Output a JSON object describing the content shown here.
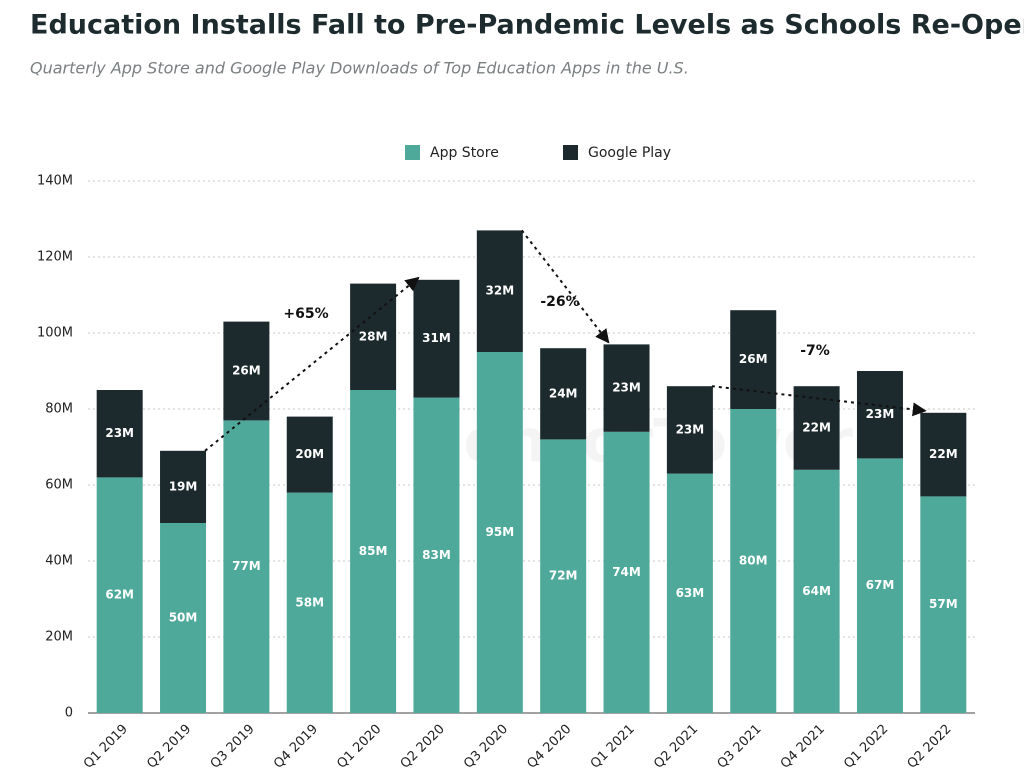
{
  "chart_data": {
    "type": "stacked-bar",
    "title": "Education Installs Fall to Pre-Pandemic Levels as Schools Re-Open",
    "subtitle": "Quarterly App Store and Google Play Downloads of Top Education Apps in the U.S.",
    "watermark": "SensorTower",
    "categories": [
      "Q1 2019",
      "Q2 2019",
      "Q3 2019",
      "Q4 2019",
      "Q1 2020",
      "Q2 2020",
      "Q3 2020",
      "Q4 2020",
      "Q1 2021",
      "Q2 2021",
      "Q3 2021",
      "Q4 2021",
      "Q1 2022",
      "Q2 2022"
    ],
    "series": [
      {
        "name": "App Store",
        "color": "#4fa99a",
        "values": [
          62,
          50,
          77,
          58,
          85,
          83,
          95,
          72,
          74,
          63,
          80,
          64,
          67,
          57
        ],
        "value_labels": [
          "62M",
          "50M",
          "77M",
          "58M",
          "85M",
          "83M",
          "95M",
          "72M",
          "74M",
          "63M",
          "80M",
          "64M",
          "67M",
          "57M"
        ]
      },
      {
        "name": "Google Play",
        "color": "#1c2a2e",
        "values": [
          23,
          19,
          26,
          20,
          28,
          31,
          32,
          24,
          23,
          23,
          26,
          22,
          23,
          22
        ],
        "value_labels": [
          "23M",
          "19M",
          "26M",
          "20M",
          "28M",
          "31M",
          "32M",
          "24M",
          "23M",
          "23M",
          "26M",
          "22M",
          "23M",
          "22M"
        ]
      }
    ],
    "annotations": [
      "+65%",
      "-26%",
      "-7%"
    ],
    "ylim": [
      0,
      140
    ],
    "yticks": [
      0,
      {
        "value": 20,
        "label": "20M"
      },
      {
        "value": 40,
        "label": "40M"
      },
      {
        "value": 60,
        "label": "60M"
      },
      {
        "value": 80,
        "label": "80M"
      },
      {
        "value": 100,
        "label": "100M"
      },
      {
        "value": 120,
        "label": "120M"
      },
      {
        "value": 140,
        "label": "140M"
      }
    ],
    "grid": true
  }
}
